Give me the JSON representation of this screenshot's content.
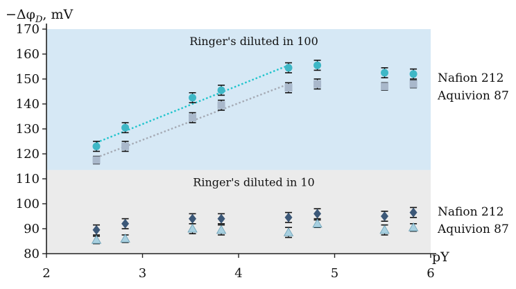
{
  "chart_data": {
    "type": "scatter",
    "ylabel_parts": [
      "−Δφ",
      "D",
      ", mV"
    ],
    "xlabel": "pY",
    "xlim": [
      2,
      6
    ],
    "ylim": [
      80,
      170
    ],
    "xticks": [
      "2",
      "3",
      "4",
      "5",
      "6"
    ],
    "yticks": [
      "80",
      "90",
      "100",
      "110",
      "120",
      "130",
      "140",
      "150",
      "160",
      "170"
    ],
    "regions": [
      {
        "label": "Ringer's diluted  in 100",
        "y_range": [
          113.5,
          170
        ],
        "color": "#d6e8f5"
      },
      {
        "label": "Ringer's diluted  in 10",
        "y_range": [
          80,
          113.5
        ],
        "color": "#ebebeb"
      }
    ],
    "series": [
      {
        "name": "Nafion 212",
        "group": "diluted in 100",
        "marker": "circle",
        "color": "#3eb7c6",
        "x": [
          2.52,
          2.82,
          3.52,
          3.82,
          4.52,
          4.82,
          5.52,
          5.82
        ],
        "y": [
          123,
          130.5,
          142.5,
          145.5,
          154.5,
          155.5,
          152.5,
          152
        ],
        "err": [
          2,
          2,
          2,
          2,
          2,
          2,
          2,
          2
        ],
        "trend": {
          "x": [
            2.52,
            4.52
          ],
          "y": [
            124.5,
            155.5
          ],
          "color": "#1fc4cc"
        }
      },
      {
        "name": "Aquivion 87",
        "group": "diluted in 100",
        "marker": "square",
        "color": "#a9b8cb",
        "x": [
          2.52,
          2.82,
          3.52,
          3.82,
          4.52,
          4.82,
          5.52,
          5.82
        ],
        "y": [
          117.5,
          123,
          134.5,
          139.5,
          146.5,
          148,
          147,
          148
        ],
        "err": [
          1.5,
          2,
          2,
          2,
          2,
          2,
          1.5,
          1.5
        ],
        "trend": {
          "x": [
            2.52,
            4.52
          ],
          "y": [
            118.5,
            148
          ],
          "color": "#a5aab4"
        }
      },
      {
        "name": "Nafion 212",
        "group": "diluted in 10",
        "marker": "diamond",
        "color": "#3c5878",
        "x": [
          2.52,
          2.82,
          3.52,
          3.82,
          4.52,
          4.82,
          5.52,
          5.82
        ],
        "y": [
          89.5,
          92,
          94,
          94,
          94.5,
          96,
          95,
          96.5
        ],
        "err": [
          2,
          2,
          2,
          2,
          2,
          2,
          2,
          2
        ]
      },
      {
        "name": "Aquivion 87",
        "group": "diluted in 10",
        "marker": "triangle",
        "color": "#a8d0e0",
        "x": [
          2.52,
          2.82,
          3.52,
          3.82,
          4.52,
          4.82,
          5.52,
          5.82
        ],
        "y": [
          85.5,
          86,
          90,
          89.5,
          88.5,
          92,
          89.5,
          90.5
        ],
        "err": [
          1.5,
          1.5,
          2,
          2,
          2,
          1.5,
          2,
          1.5
        ]
      }
    ],
    "legend": [
      {
        "text": "Nafion 212",
        "y": 97
      },
      {
        "text": "Aquivion 87",
        "y": 90
      },
      {
        "text": "Nafion 212",
        "y": 150.5
      },
      {
        "text": "Aquivion 87",
        "y": 143.5
      }
    ],
    "grid": false
  }
}
